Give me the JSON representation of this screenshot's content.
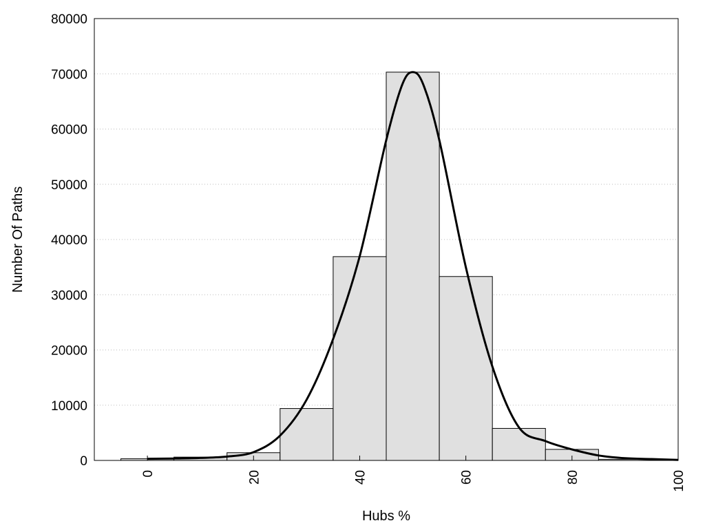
{
  "chart_data": {
    "type": "bar",
    "title": "",
    "xlabel": "Hubs %",
    "ylabel": "Number Of Paths",
    "xlim": [
      -10,
      100
    ],
    "ylim": [
      0,
      80000
    ],
    "grid": "horizontal-dotted",
    "x_ticks": [
      "0",
      "20",
      "40",
      "60",
      "80",
      "100"
    ],
    "y_ticks": [
      "0",
      "10000",
      "20000",
      "30000",
      "40000",
      "50000",
      "60000",
      "70000",
      "80000"
    ],
    "bins": [
      {
        "start": -5,
        "end": 5,
        "value": 300
      },
      {
        "start": 5,
        "end": 15,
        "value": 600
      },
      {
        "start": 15,
        "end": 25,
        "value": 1400
      },
      {
        "start": 25,
        "end": 35,
        "value": 9400
      },
      {
        "start": 35,
        "end": 45,
        "value": 36900
      },
      {
        "start": 45,
        "end": 55,
        "value": 70300
      },
      {
        "start": 55,
        "end": 65,
        "value": 33300
      },
      {
        "start": 65,
        "end": 75,
        "value": 5800
      },
      {
        "start": 75,
        "end": 85,
        "value": 2000
      },
      {
        "start": 85,
        "end": 95,
        "value": 200
      }
    ],
    "curve": {
      "x": [
        0,
        5,
        10,
        15,
        20,
        25,
        30,
        35,
        40,
        45,
        48,
        50,
        52,
        55,
        60,
        65,
        70,
        75,
        80,
        85,
        90,
        95,
        100
      ],
      "y": [
        300,
        350,
        450,
        700,
        1500,
        4500,
        11000,
        22000,
        37000,
        58000,
        68000,
        70300,
        68000,
        58000,
        35000,
        17000,
        6000,
        3500,
        2000,
        900,
        400,
        250,
        100
      ]
    },
    "colors": {
      "bar_fill": "#e0e0e0",
      "bar_stroke": "#000000",
      "curve": "#000000",
      "grid": "#bbbbbb"
    }
  }
}
